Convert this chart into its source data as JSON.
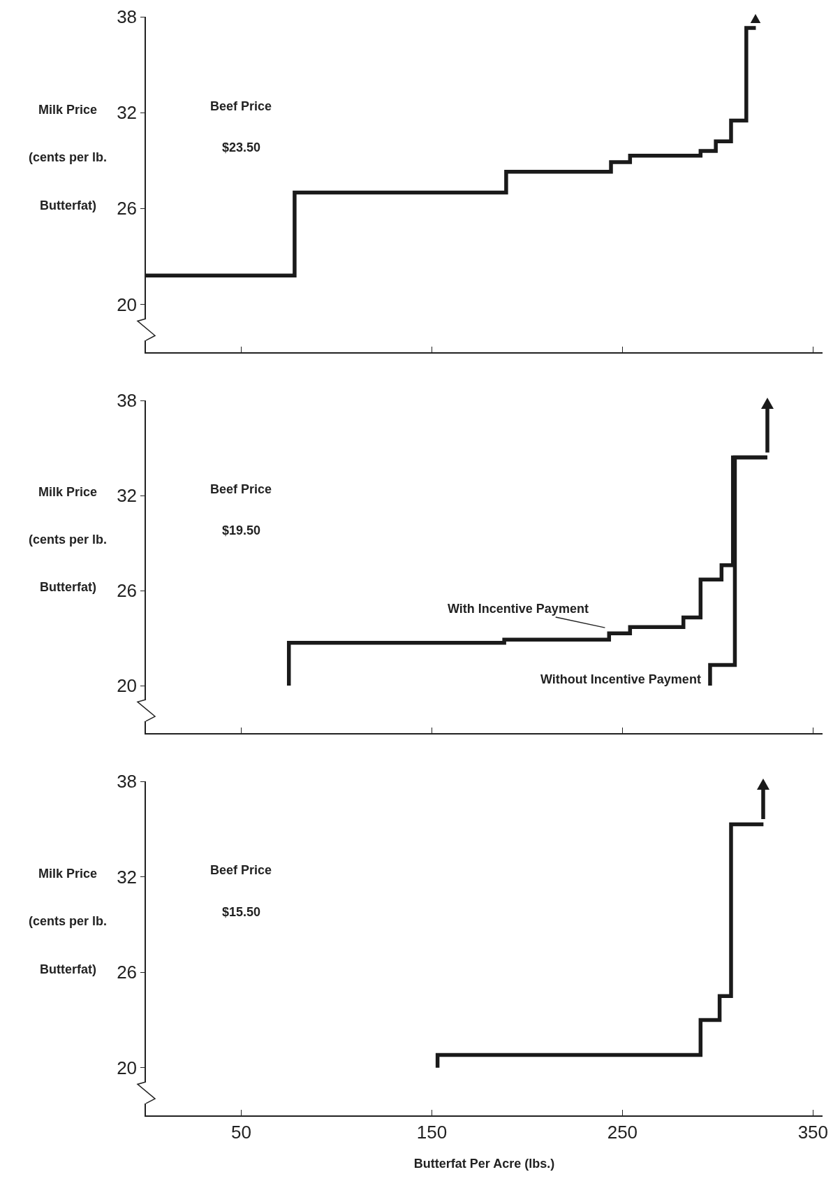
{
  "chart_data": [
    {
      "type": "step",
      "ylabel": "Milk Price\n(cents per lb.\nButterfat)",
      "annotations": [
        "Beef Price",
        "$23.50"
      ],
      "xlim": [
        0,
        355
      ],
      "ylim": [
        17,
        38
      ],
      "xticks": [
        50,
        150,
        250,
        350
      ],
      "yticks": [
        20,
        26,
        32,
        38
      ],
      "tick_labels": "y",
      "grid": false,
      "legend": false,
      "marker": "none",
      "line_style": "solid",
      "series": [
        {
          "color": "#1a1a1a",
          "x": [
            0,
            78,
            189,
            244,
            254,
            291,
            299,
            307,
            315,
            320
          ],
          "values": [
            21.8,
            27.0,
            28.3,
            28.9,
            29.3,
            29.6,
            30.2,
            31.5,
            37.3,
            37.3
          ]
        }
      ]
    },
    {
      "type": "step",
      "ylabel": "Milk Price\n(cents per lb.\nButterfat)",
      "annotations": [
        "Beef Price",
        "$19.50"
      ],
      "xlim": [
        0,
        355
      ],
      "ylim": [
        17,
        38
      ],
      "xticks": [
        50,
        150,
        250,
        350
      ],
      "yticks": [
        20,
        26,
        32,
        38
      ],
      "tick_labels": "y",
      "grid": false,
      "legend": false,
      "marker": "none",
      "line_style": "solid",
      "series": [
        {
          "name": "With Incentive Payment",
          "color": "#1a1a1a",
          "x": [
            75,
            75,
            188,
            243,
            254,
            282,
            291,
            302,
            308,
            326
          ],
          "values": [
            20,
            22.7,
            22.9,
            23.3,
            23.7,
            24.3,
            26.7,
            27.6,
            34.4,
            34.4
          ]
        },
        {
          "name": "Without Incentive Payment",
          "color": "#1a1a1a",
          "x": [
            296,
            296,
            309,
            326
          ],
          "values": [
            20,
            21.3,
            34.4,
            34.4
          ]
        }
      ]
    },
    {
      "type": "step",
      "ylabel": "Milk Price\n(cents per lb.\nButterfat)",
      "xlabel": "Butterfat Per Acre (lbs.)",
      "annotations": [
        "Beef Price",
        "$15.50"
      ],
      "xlim": [
        0,
        355
      ],
      "ylim": [
        17,
        38
      ],
      "xticks": [
        50,
        150,
        250,
        350
      ],
      "yticks": [
        20,
        26,
        32,
        38
      ],
      "grid": false,
      "legend": false,
      "marker": "none",
      "line_style": "solid",
      "series": [
        {
          "color": "#1a1a1a",
          "x": [
            153,
            153,
            291,
            301,
            307,
            324
          ],
          "values": [
            20,
            20.8,
            23.0,
            24.5,
            35.3,
            35.3
          ]
        }
      ]
    }
  ]
}
